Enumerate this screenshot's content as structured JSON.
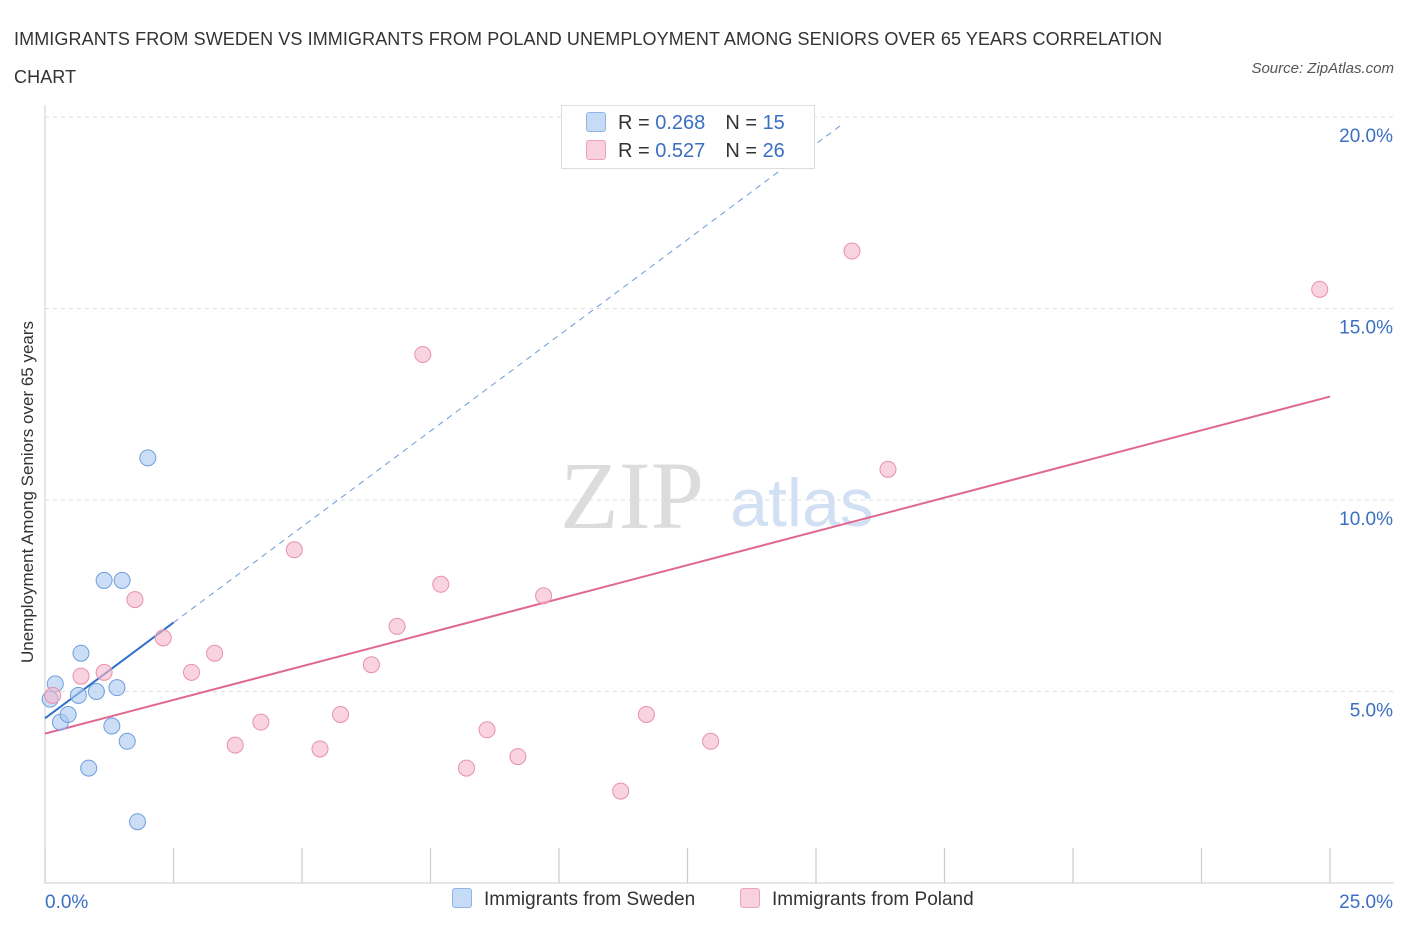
{
  "title": "IMMIGRANTS FROM SWEDEN VS IMMIGRANTS FROM POLAND UNEMPLOYMENT AMONG SENIORS OVER 65 YEARS CORRELATION CHART",
  "source": "Source: ZipAtlas.com",
  "watermark": {
    "zip": "ZIP",
    "atlas": "atlas"
  },
  "legend": {
    "rows": [
      {
        "r_label": "R = ",
        "r_value": "0.268",
        "n_label": "N = ",
        "n_value": "15",
        "color": "#a8c8f0"
      },
      {
        "r_label": "R = ",
        "r_value": "0.527",
        "n_label": "N = ",
        "n_value": "26",
        "color": "#f5b8cb"
      }
    ]
  },
  "bottom_legend": [
    {
      "label": "Immigrants from Sweden",
      "color": "#a8c8f0"
    },
    {
      "label": "Immigrants from Poland",
      "color": "#f5b8cb"
    }
  ],
  "chart_data": {
    "type": "scatter",
    "title": "IMMIGRANTS FROM SWEDEN VS IMMIGRANTS FROM POLAND UNEMPLOYMENT AMONG SENIORS OVER 65 YEARS CORRELATION CHART",
    "xlabel": "",
    "ylabel": "Unemployment Among Seniors over 65 years",
    "xlim": [
      0,
      25
    ],
    "ylim": [
      0,
      20
    ],
    "x_tick_labels": [
      {
        "value": 0,
        "label": "0.0%"
      },
      {
        "value": 25,
        "label": "25.0%"
      }
    ],
    "y_tick_labels": [
      {
        "value": 5,
        "label": "5.0%"
      },
      {
        "value": 10,
        "label": "10.0%"
      },
      {
        "value": 15,
        "label": "15.0%"
      },
      {
        "value": 20,
        "label": "20.0%"
      }
    ],
    "grid": true,
    "series": [
      {
        "name": "Immigrants from Sweden",
        "color": "#a8c8f0",
        "stroke": "#6e9edc",
        "line_color": "#3070c8",
        "points": [
          {
            "x": 0.1,
            "y": 4.8
          },
          {
            "x": 0.2,
            "y": 5.2
          },
          {
            "x": 0.3,
            "y": 4.2
          },
          {
            "x": 0.45,
            "y": 4.4
          },
          {
            "x": 0.65,
            "y": 4.9
          },
          {
            "x": 0.7,
            "y": 6.0
          },
          {
            "x": 0.85,
            "y": 3.0
          },
          {
            "x": 1.0,
            "y": 5.0
          },
          {
            "x": 1.15,
            "y": 7.9
          },
          {
            "x": 1.3,
            "y": 4.1
          },
          {
            "x": 1.4,
            "y": 5.1
          },
          {
            "x": 1.5,
            "y": 7.9
          },
          {
            "x": 1.6,
            "y": 3.7
          },
          {
            "x": 1.8,
            "y": 1.6
          },
          {
            "x": 2.0,
            "y": 11.1
          }
        ],
        "trend": {
          "x0": 0,
          "y0": 4.3,
          "x1": 2.5,
          "y1": 6.8,
          "extend_to_x": 15.5
        }
      },
      {
        "name": "Immigrants from Poland",
        "color": "#f5b8cb",
        "stroke": "#e890ac",
        "line_color": "#e06890",
        "points": [
          {
            "x": 0.15,
            "y": 4.9
          },
          {
            "x": 0.7,
            "y": 5.4
          },
          {
            "x": 1.15,
            "y": 5.5
          },
          {
            "x": 1.75,
            "y": 7.4
          },
          {
            "x": 2.3,
            "y": 6.4
          },
          {
            "x": 2.85,
            "y": 5.5
          },
          {
            "x": 3.3,
            "y": 6.0
          },
          {
            "x": 3.7,
            "y": 3.6
          },
          {
            "x": 4.2,
            "y": 4.2
          },
          {
            "x": 4.85,
            "y": 8.7
          },
          {
            "x": 5.35,
            "y": 3.5
          },
          {
            "x": 5.75,
            "y": 4.4
          },
          {
            "x": 6.35,
            "y": 5.7
          },
          {
            "x": 6.85,
            "y": 6.7
          },
          {
            "x": 7.35,
            "y": 13.8
          },
          {
            "x": 7.7,
            "y": 7.8
          },
          {
            "x": 8.2,
            "y": 3.0
          },
          {
            "x": 8.6,
            "y": 4.0
          },
          {
            "x": 9.2,
            "y": 3.3
          },
          {
            "x": 9.7,
            "y": 7.5
          },
          {
            "x": 11.2,
            "y": 2.4
          },
          {
            "x": 11.7,
            "y": 4.4
          },
          {
            "x": 12.95,
            "y": 3.7
          },
          {
            "x": 15.7,
            "y": 16.5
          },
          {
            "x": 16.4,
            "y": 10.8
          },
          {
            "x": 24.8,
            "y": 15.5
          }
        ],
        "trend": {
          "x0": 0,
          "y0": 3.9,
          "x1": 25,
          "y1": 12.7
        }
      }
    ]
  }
}
